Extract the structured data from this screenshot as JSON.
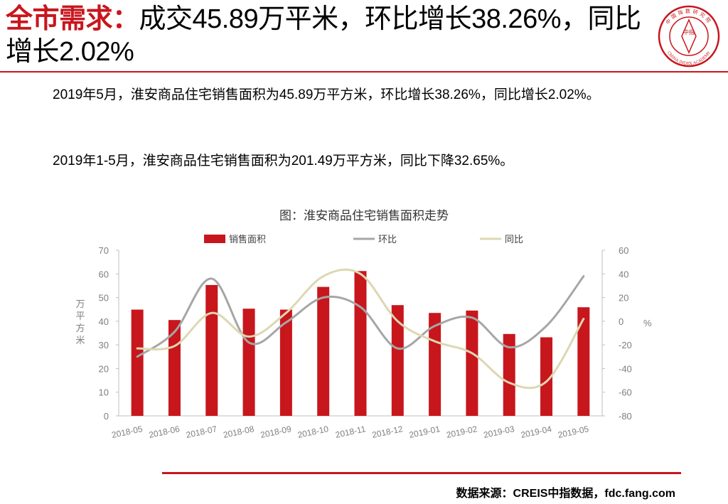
{
  "header": {
    "title_highlight": "全市需求：",
    "title_rest": "成交45.89万平米，环比增长38.26%，同比增长2.02%",
    "logo_text_top": "中国指数研究院",
    "logo_text_bottom": "CHINA INDEX ACADEMY",
    "logo_center": "中指"
  },
  "body": {
    "para1": "2019年5月，淮安商品住宅销售面积为45.89万平方米，环比增长38.26%，同比增长2.02%。",
    "para2": "2019年1-5月，淮安商品住宅销售面积为201.49万平方米，同比下降32.65%。"
  },
  "chart_data": {
    "type": "bar+line",
    "title": "图：淮安商品住宅销售面积走势",
    "categories": [
      "2018-05",
      "2018-06",
      "2018-07",
      "2018-08",
      "2018-09",
      "2018-10",
      "2018-11",
      "2018-12",
      "2019-01",
      "2019-02",
      "2019-03",
      "2019-04",
      "2019-05"
    ],
    "series": [
      {
        "name": "销售面积",
        "type": "bar",
        "axis": "left",
        "color": "#c8161d",
        "values": [
          44.9,
          40.5,
          55.3,
          45.3,
          44.9,
          54.5,
          61.2,
          46.8,
          43.5,
          44.5,
          34.6,
          33.2,
          45.9
        ]
      },
      {
        "name": "环比",
        "type": "line",
        "axis": "right",
        "color": "#a6a6a6",
        "values": [
          -30,
          -9,
          36,
          -18,
          -1,
          20,
          12,
          -23,
          -4,
          3,
          -22,
          -4,
          38
        ]
      },
      {
        "name": "同比",
        "type": "line",
        "axis": "right",
        "color": "#ddd7b2",
        "values": [
          -23,
          -21,
          7,
          -13,
          7,
          38,
          40,
          0,
          -17,
          -27,
          -52,
          -51,
          2
        ]
      }
    ],
    "ylabel": "万平方米",
    "y2label": "%",
    "ylim": [
      0,
      70
    ],
    "y2lim": [
      -80,
      60
    ],
    "yticks": [
      0,
      10,
      20,
      30,
      40,
      50,
      60,
      70
    ],
    "y2ticks": [
      -80,
      -60,
      -40,
      -20,
      0,
      20,
      40,
      60
    ],
    "legend_position": "top",
    "grid": false
  },
  "footer": {
    "source": "数据来源：CREIS中指数据，fdc.fang.com"
  },
  "colors": {
    "accent": "#c8161d",
    "bar": "#c8161d",
    "line_mom": "#a6a6a6",
    "line_yoy": "#ddd7b2",
    "axis": "#7f7f7f"
  }
}
